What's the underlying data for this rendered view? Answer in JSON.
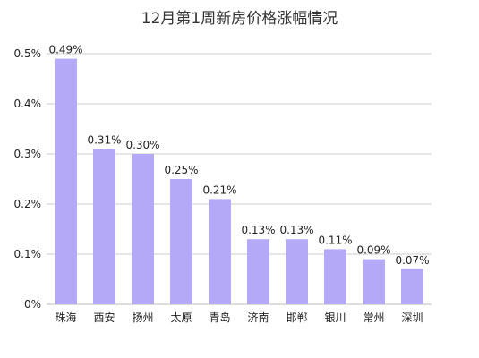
{
  "chart_data": {
    "type": "bar",
    "title": "12月第1周新房价格涨幅情况",
    "xlabel": "",
    "ylabel": "",
    "categories": [
      "珠海",
      "西安",
      "扬州",
      "太原",
      "青岛",
      "济南",
      "邯郸",
      "银川",
      "常州",
      "深圳"
    ],
    "values": [
      0.49,
      0.31,
      0.3,
      0.25,
      0.21,
      0.13,
      0.13,
      0.11,
      0.09,
      0.07
    ],
    "data_labels": [
      "0.49%",
      "0.31%",
      "0.30%",
      "0.25%",
      "0.21%",
      "0.13%",
      "0.13%",
      "0.11%",
      "0.09%",
      "0.07%"
    ],
    "ylim": [
      0,
      0.5
    ],
    "yticks": [
      0,
      0.1,
      0.2,
      0.3,
      0.4,
      0.5
    ],
    "ytick_labels": [
      "0%",
      "0.1%",
      "0.2%",
      "0.3%",
      "0.4%",
      "0.5%"
    ],
    "grid": true,
    "legend": "none",
    "bar_color": "#b4a9f7",
    "grid_color": "#cccccc"
  }
}
